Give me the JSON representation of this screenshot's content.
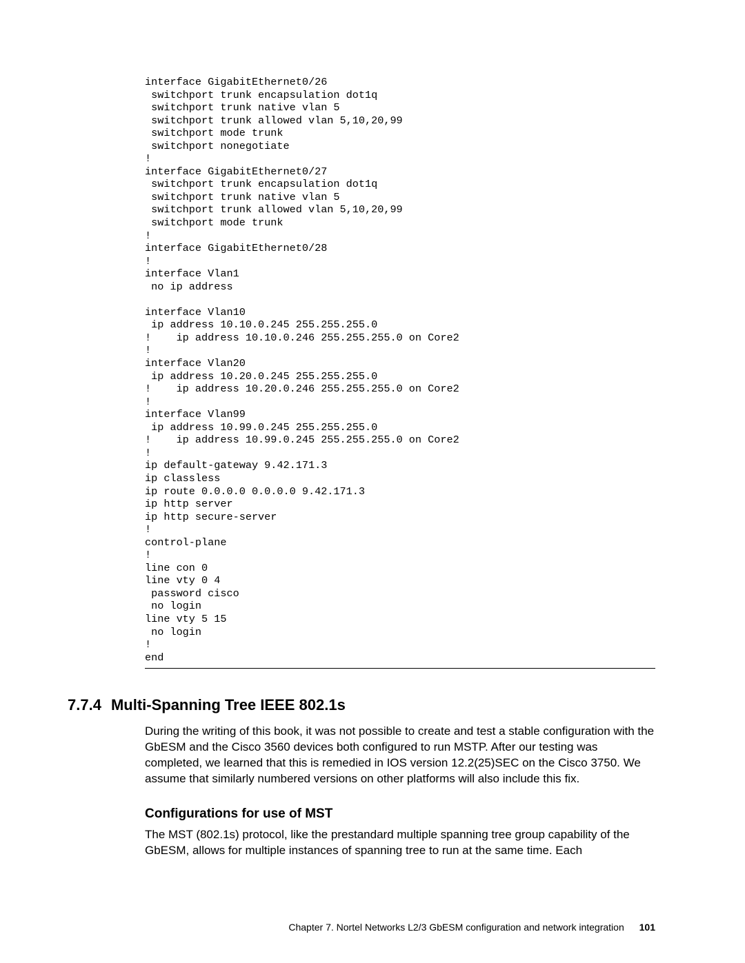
{
  "code": "interface GigabitEthernet0/26\n switchport trunk encapsulation dot1q\n switchport trunk native vlan 5\n switchport trunk allowed vlan 5,10,20,99\n switchport mode trunk\n switchport nonegotiate\n!\ninterface GigabitEthernet0/27\n switchport trunk encapsulation dot1q\n switchport trunk native vlan 5\n switchport trunk allowed vlan 5,10,20,99\n switchport mode trunk\n!\ninterface GigabitEthernet0/28\n!\ninterface Vlan1\n no ip address\n\ninterface Vlan10\n ip address 10.10.0.245 255.255.255.0\n!    ip address 10.10.0.246 255.255.255.0 on Core2\n!\ninterface Vlan20\n ip address 10.20.0.245 255.255.255.0\n!    ip address 10.20.0.246 255.255.255.0 on Core2\n!\ninterface Vlan99\n ip address 10.99.0.245 255.255.255.0\n!    ip address 10.99.0.245 255.255.255.0 on Core2\n!\nip default-gateway 9.42.171.3\nip classless\nip route 0.0.0.0 0.0.0.0 9.42.171.3\nip http server\nip http secure-server\n!\ncontrol-plane\n!\nline con 0\nline vty 0 4\n password cisco\n no login\nline vty 5 15\n no login\n!\nend",
  "section": {
    "number": "7.7.4",
    "title": "Multi-Spanning Tree IEEE 802.1s",
    "body": "During the writing of this book, it was not possible to create and test a stable configuration with the GbESM and the Cisco 3560 devices both configured to run MSTP. After our testing was completed, we learned that this is remedied in IOS version 12.2(25)SEC on the Cisco 3750. We assume that similarly numbered versions on other platforms will also include this fix."
  },
  "subsection": {
    "title": "Configurations for use of MST",
    "body": "The MST (802.1s) protocol, like the prestandard multiple spanning tree group capability of the GbESM, allows for multiple instances of spanning tree to run at the same time. Each"
  },
  "footer": {
    "chapter": "Chapter 7. Nortel Networks L2/3 GbESM configuration and network integration",
    "page": "101"
  }
}
